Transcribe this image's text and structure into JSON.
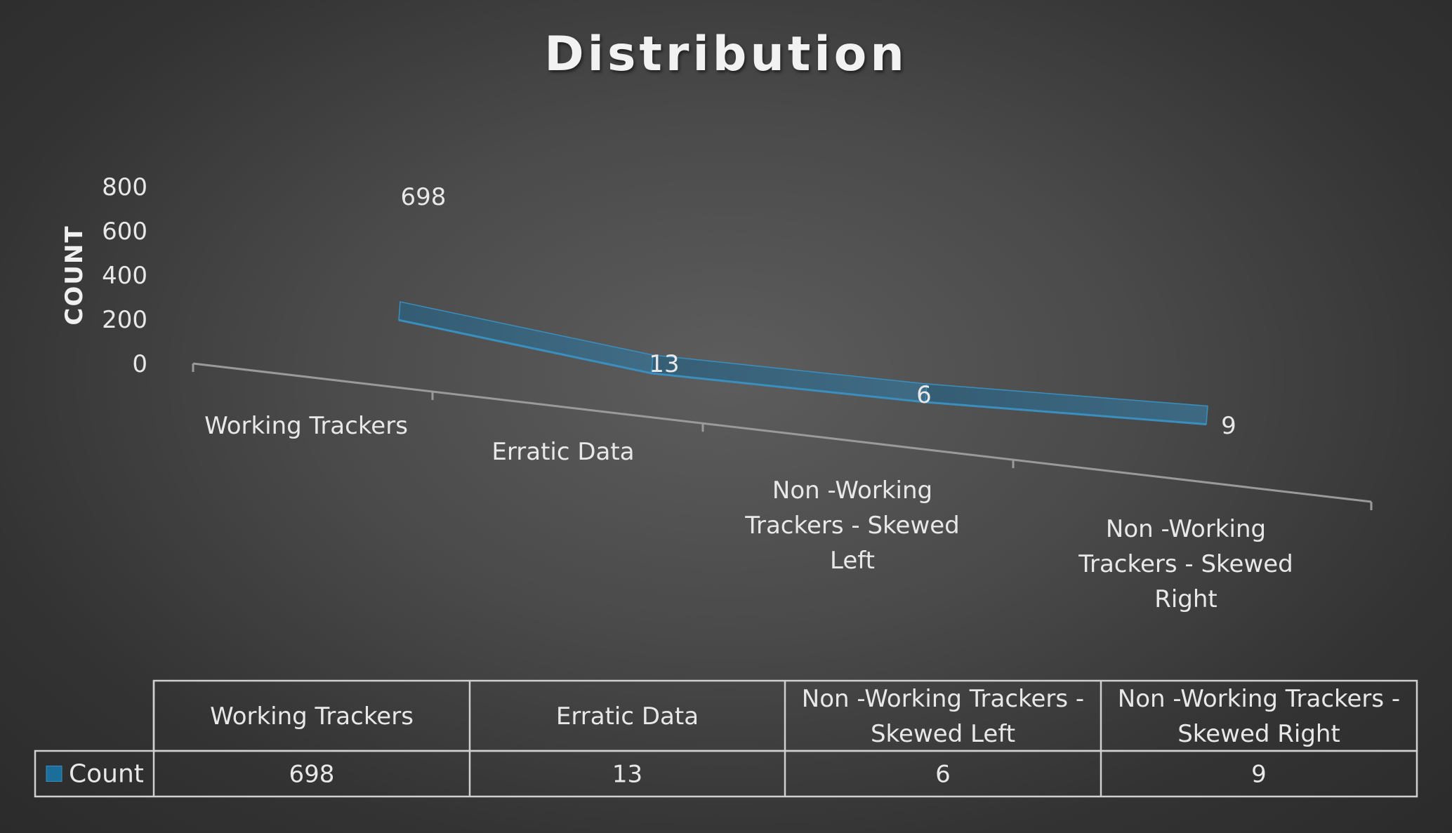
{
  "chart_data": {
    "type": "line",
    "title": "Distribution",
    "ylabel": "COUNT",
    "xlabel": "",
    "categories": [
      "Working Trackers",
      "Erratic Data",
      "Non -Working Trackers - Skewed Left",
      "Non -Working Trackers - Skewed Right"
    ],
    "category_label_lines": [
      [
        "Working Trackers"
      ],
      [
        "Erratic Data"
      ],
      [
        "Non -Working",
        "Trackers - Skewed",
        "Left"
      ],
      [
        "Non -Working",
        "Trackers - Skewed",
        "Right"
      ]
    ],
    "series": [
      {
        "name": "Count",
        "values": [
          698,
          13,
          6,
          9
        ]
      }
    ],
    "ylim": [
      0,
      800
    ],
    "yticks": [
      0,
      200,
      400,
      600,
      800
    ],
    "style": "3d-ribbon",
    "colors": {
      "series": "#1a6e99",
      "series_dark": "#0c4a6e",
      "series_light": "#3a8fbe",
      "axis": "#9a9a9a",
      "text": "#e8e8e8"
    },
    "data_table": {
      "legend_key": "Count",
      "headers": [
        [
          "Working Trackers"
        ],
        [
          "Erratic Data"
        ],
        [
          "Non -Working Trackers -",
          "Skewed Left"
        ],
        [
          "Non -Working Trackers -",
          "Skewed Right"
        ]
      ],
      "values": [
        "698",
        "13",
        "6",
        "9"
      ]
    },
    "grid": false,
    "legend": "data-table"
  }
}
